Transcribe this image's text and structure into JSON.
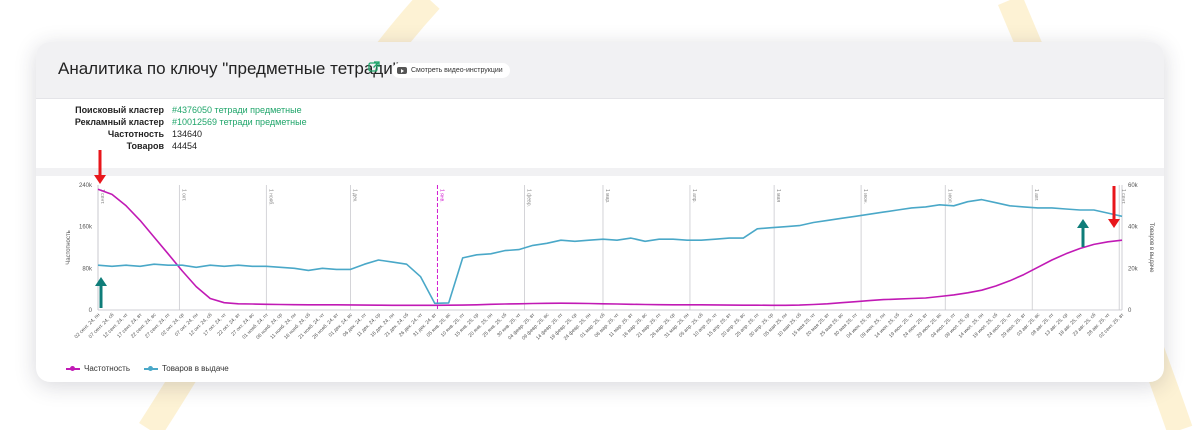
{
  "header": {
    "title": "Аналитика по ключу \"предметные тетради\"",
    "video_button": "Смотреть видео-инструкции"
  },
  "info": [
    {
      "label": "Поисковый кластер",
      "value": "#4376050 тетради предметные",
      "link": true
    },
    {
      "label": "Рекламный кластер",
      "value": "#10012569 тетради предметные",
      "link": true
    },
    {
      "label": "Частотность",
      "value": "134640",
      "link": false
    },
    {
      "label": "Товаров",
      "value": "44454",
      "link": false
    }
  ],
  "colors": {
    "frequency": "#c11ab5",
    "products": "#4aa8c8",
    "marker_line": "#d11ad0",
    "arrow_red": "#e8161b",
    "arrow_teal": "#0f7d79",
    "link": "#1fa56a"
  },
  "legend": {
    "frequency": "Частотность",
    "products": "Товаров в выдаче"
  },
  "chart_data": {
    "type": "line",
    "ylabel": "Частотность",
    "y2label": "Товаров в выдаче",
    "ylim": [
      0,
      240000
    ],
    "y2lim": [
      0,
      60000
    ],
    "y_ticks": [
      "0",
      "80k",
      "160k",
      "240k"
    ],
    "y2_ticks": [
      "0",
      "20k",
      "40k",
      "60k"
    ],
    "grid": "vertical",
    "legend_position": "bottom-left",
    "x": [
      "02 сент. 24, пн",
      "07 сент. 24, сб",
      "12 сент. 24, чт",
      "17 сент. 24, вт",
      "22 сент. 24, вс",
      "27 сент. 24, пт",
      "02 окт. 24, ср",
      "07 окт. 24, пн",
      "12 окт. 24, сб",
      "17 окт. 24, чт",
      "22 окт. 24, вт",
      "27 окт. 24, вс",
      "01 нояб. 24, пт",
      "06 нояб. 24, ср",
      "11 нояб. 24, пн",
      "16 нояб. 24, сб",
      "21 нояб. 24, чт",
      "26 нояб. 24, вт",
      "01 дек. 24, вс",
      "06 дек. 24, пт",
      "11 дек. 24, ср",
      "16 дек. 24, пн",
      "21 дек. 24, сб",
      "26 дек. 24, чт",
      "31 дек. 24, вт",
      "05 янв. 25, вс",
      "10 янв. 25, пт",
      "15 янв. 25, ср",
      "20 янв. 25, пн",
      "25 янв. 25, сб",
      "30 янв. 25, чт",
      "04 февр. 25, вт",
      "09 февр. 25, вс",
      "14 февр. 25, пт",
      "19 февр. 25, ср",
      "24 февр. 25, пн",
      "01 мар. 25, сб",
      "06 мар. 25, чт",
      "11 мар. 25, вт",
      "16 мар. 25, вс",
      "21 мар. 25, пт",
      "26 мар. 25, ср",
      "31 мар. 25, пн",
      "05 апр. 25, сб",
      "10 апр. 25, чт",
      "15 апр. 25, вт",
      "20 апр. 25, вс",
      "25 апр. 25, пт",
      "30 апр. 25, ср",
      "05 мая 25, пн",
      "10 мая 25, сб",
      "15 мая 25, чт",
      "20 мая 25, вт",
      "25 мая 25, вс",
      "30 мая 25, пт",
      "04 июн. 25, ср",
      "09 июн. 25, пн",
      "14 июн. 25, сб",
      "19 июн. 25, чт",
      "24 июн. 25, вт",
      "29 июн. 25, вс",
      "04 июл. 25, пт",
      "09 июл. 25, ср",
      "14 июл. 25, пн",
      "19 июл. 25, сб",
      "24 июл. 25, чт",
      "29 июл. 25, вт",
      "03 авг. 25, вс",
      "08 авг. 25, пт",
      "13 авг. 25, ср",
      "18 авг. 25, пн",
      "23 авг. 25, сб",
      "28 авг. 25, чт",
      "02 сент. 25, вт"
    ],
    "month_markers": [
      {
        "label": "1 сент.",
        "index": 0
      },
      {
        "label": "1 окт.",
        "index": 5.8
      },
      {
        "label": "1 нояб.",
        "index": 12
      },
      {
        "label": "1 дек.",
        "index": 18
      },
      {
        "label": "1 янв.",
        "index": 24.2,
        "highlight": true
      },
      {
        "label": "1 февр.",
        "index": 30.4
      },
      {
        "label": "1 мар.",
        "index": 36
      },
      {
        "label": "1 апр.",
        "index": 42.2
      },
      {
        "label": "1 мая",
        "index": 48.2
      },
      {
        "label": "1 июн.",
        "index": 54.4
      },
      {
        "label": "1 июл.",
        "index": 60.4
      },
      {
        "label": "1 авг.",
        "index": 66.6
      },
      {
        "label": "1 сент.",
        "index": 72.8
      }
    ],
    "series": [
      {
        "name": "Частотность",
        "axis": "left",
        "values": [
          232000,
          222000,
          200000,
          172000,
          140000,
          108000,
          75000,
          45000,
          22000,
          14000,
          12000,
          11500,
          11000,
          10500,
          10200,
          10000,
          10000,
          10000,
          9800,
          9500,
          9300,
          9000,
          9000,
          9000,
          9000,
          9200,
          9500,
          10000,
          11000,
          11500,
          12000,
          12500,
          12800,
          13000,
          12800,
          12500,
          12000,
          11500,
          11000,
          10500,
          10200,
          10000,
          10000,
          10000,
          9800,
          9500,
          9300,
          9200,
          9000,
          9000,
          9500,
          10500,
          12000,
          14000,
          16000,
          18000,
          20000,
          21000,
          22000,
          23000,
          26000,
          29000,
          33000,
          38000,
          46000,
          56000,
          68000,
          82000,
          96000,
          108000,
          118000,
          126000,
          131000,
          134000
        ]
      },
      {
        "name": "Товаров в выдаче",
        "axis": "right",
        "values": [
          21500,
          21000,
          21500,
          21000,
          22000,
          21500,
          21500,
          20500,
          21500,
          21000,
          21500,
          21000,
          21000,
          20500,
          20000,
          19000,
          20000,
          19500,
          19500,
          22000,
          24000,
          23000,
          22000,
          16000,
          3200,
          3400,
          25000,
          26500,
          27000,
          28500,
          29000,
          31000,
          32000,
          33500,
          33000,
          33500,
          34000,
          33500,
          34500,
          33000,
          34000,
          34000,
          33500,
          33500,
          34000,
          34500,
          34500,
          39000,
          39500,
          40000,
          40500,
          42000,
          43000,
          44000,
          45000,
          46000,
          47000,
          48000,
          49000,
          49500,
          50500,
          50000,
          52000,
          53000,
          51500,
          50000,
          49500,
          49000,
          49000,
          48500,
          48000,
          48000,
          46500,
          45000
        ]
      }
    ]
  }
}
